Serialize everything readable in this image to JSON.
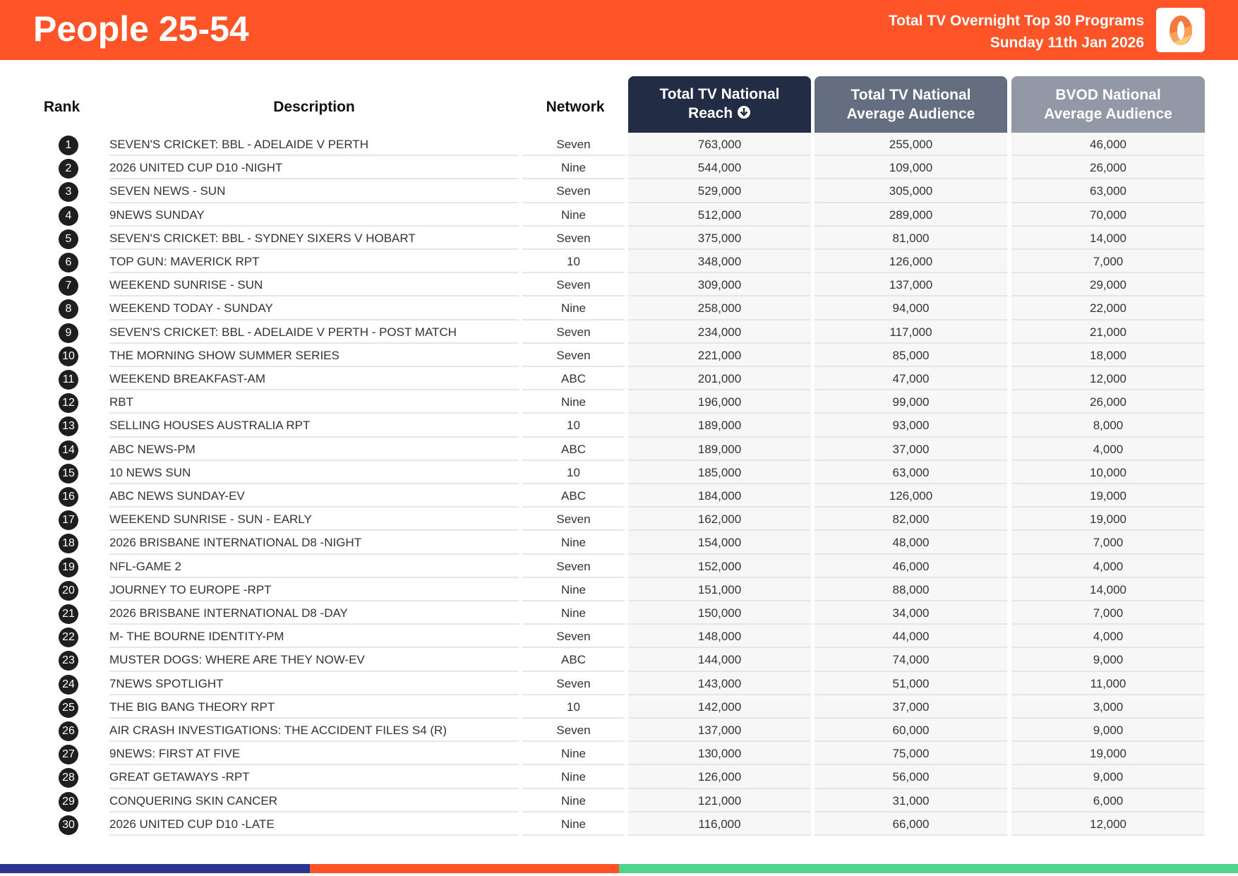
{
  "header": {
    "title": "People 25-54",
    "subtitle_line1": "Total TV Overnight Top 30 Programs",
    "subtitle_line2": "Sunday 11th Jan 2026",
    "logo_text": "0"
  },
  "columns": {
    "rank": "Rank",
    "description": "Description",
    "network": "Network",
    "reach": "Total TV National Reach",
    "reach_line1": "Total TV National",
    "reach_line2": "Reach",
    "avg": "Total TV National Average Audience",
    "avg_line1": "Total TV National",
    "avg_line2": "Average Audience",
    "bvod_line1": "BVOD National",
    "bvod_line2": "Average Audience"
  },
  "sort_icon": "arrow-down-circle-icon",
  "colors": {
    "brand": "#ff5427",
    "reach_header": "#222c45",
    "avg_header": "#656d80",
    "bvod_header": "#9298a6",
    "bar_blue": "#2d3590",
    "bar_orange": "#ff5427",
    "bar_green": "#50d38a"
  },
  "rows": [
    [
      "1",
      "SEVEN'S CRICKET: BBL - ADELAIDE V PERTH",
      "Seven",
      "763,000",
      "255,000",
      "46,000"
    ],
    [
      "2",
      "2026 UNITED CUP D10 -NIGHT",
      "Nine",
      "544,000",
      "109,000",
      "26,000"
    ],
    [
      "3",
      "SEVEN NEWS - SUN",
      "Seven",
      "529,000",
      "305,000",
      "63,000"
    ],
    [
      "4",
      "9NEWS SUNDAY",
      "Nine",
      "512,000",
      "289,000",
      "70,000"
    ],
    [
      "5",
      "SEVEN'S CRICKET: BBL - SYDNEY SIXERS V HOBART",
      "Seven",
      "375,000",
      "81,000",
      "14,000"
    ],
    [
      "6",
      "TOP GUN: MAVERICK RPT",
      "10",
      "348,000",
      "126,000",
      "7,000"
    ],
    [
      "7",
      "WEEKEND SUNRISE - SUN",
      "Seven",
      "309,000",
      "137,000",
      "29,000"
    ],
    [
      "8",
      "WEEKEND TODAY - SUNDAY",
      "Nine",
      "258,000",
      "94,000",
      "22,000"
    ],
    [
      "9",
      "SEVEN'S CRICKET: BBL - ADELAIDE V PERTH - POST MATCH",
      "Seven",
      "234,000",
      "117,000",
      "21,000"
    ],
    [
      "10",
      "THE MORNING SHOW SUMMER SERIES",
      "Seven",
      "221,000",
      "85,000",
      "18,000"
    ],
    [
      "11",
      "WEEKEND BREAKFAST-AM",
      "ABC",
      "201,000",
      "47,000",
      "12,000"
    ],
    [
      "12",
      "RBT",
      "Nine",
      "196,000",
      "99,000",
      "26,000"
    ],
    [
      "13",
      "SELLING HOUSES AUSTRALIA RPT",
      "10",
      "189,000",
      "93,000",
      "8,000"
    ],
    [
      "14",
      "ABC NEWS-PM",
      "ABC",
      "189,000",
      "37,000",
      "4,000"
    ],
    [
      "15",
      "10 NEWS SUN",
      "10",
      "185,000",
      "63,000",
      "10,000"
    ],
    [
      "16",
      "ABC NEWS SUNDAY-EV",
      "ABC",
      "184,000",
      "126,000",
      "19,000"
    ],
    [
      "17",
      "WEEKEND SUNRISE - SUN - EARLY",
      "Seven",
      "162,000",
      "82,000",
      "19,000"
    ],
    [
      "18",
      "2026 BRISBANE INTERNATIONAL D8 -NIGHT",
      "Nine",
      "154,000",
      "48,000",
      "7,000"
    ],
    [
      "19",
      "NFL-GAME 2",
      "Seven",
      "152,000",
      "46,000",
      "4,000"
    ],
    [
      "20",
      "JOURNEY TO EUROPE -RPT",
      "Nine",
      "151,000",
      "88,000",
      "14,000"
    ],
    [
      "21",
      "2026 BRISBANE INTERNATIONAL D8 -DAY",
      "Nine",
      "150,000",
      "34,000",
      "7,000"
    ],
    [
      "22",
      "M- THE BOURNE IDENTITY-PM",
      "Seven",
      "148,000",
      "44,000",
      "4,000"
    ],
    [
      "23",
      "MUSTER DOGS: WHERE ARE THEY NOW-EV",
      "ABC",
      "144,000",
      "74,000",
      "9,000"
    ],
    [
      "24",
      "7NEWS SPOTLIGHT",
      "Seven",
      "143,000",
      "51,000",
      "11,000"
    ],
    [
      "25",
      "THE BIG BANG THEORY RPT",
      "10",
      "142,000",
      "37,000",
      "3,000"
    ],
    [
      "26",
      "AIR CRASH INVESTIGATIONS: THE ACCIDENT FILES S4 (R)",
      "Seven",
      "137,000",
      "60,000",
      "9,000"
    ],
    [
      "27",
      "9NEWS: FIRST AT FIVE",
      "Nine",
      "130,000",
      "75,000",
      "19,000"
    ],
    [
      "28",
      "GREAT GETAWAYS -RPT",
      "Nine",
      "126,000",
      "56,000",
      "9,000"
    ],
    [
      "29",
      "CONQUERING SKIN CANCER",
      "Nine",
      "121,000",
      "31,000",
      "6,000"
    ],
    [
      "30",
      "2026 UNITED CUP D10 -LATE",
      "Nine",
      "116,000",
      "66,000",
      "12,000"
    ]
  ]
}
